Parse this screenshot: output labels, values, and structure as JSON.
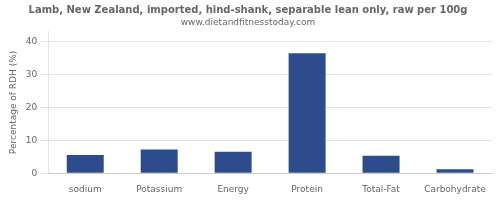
{
  "chart_data": {
    "type": "bar",
    "title": "Lamb, New Zealand, imported, hind-shank, separable lean only, raw per 100g",
    "subtitle": "www.dietandfitnesstoday.com",
    "categories": [
      "sodium",
      "Potassium",
      "Energy",
      "Protein",
      "Total-Fat",
      "Carbohydrate"
    ],
    "values": [
      5.5,
      7.2,
      6.5,
      36.5,
      5.3,
      1.2
    ],
    "color": "#2e4b8c",
    "ylabel": "Percentage of RDH (%)",
    "ylim": [
      0,
      43
    ],
    "yticks": [
      0,
      10,
      20,
      30,
      40
    ],
    "grid": true
  }
}
